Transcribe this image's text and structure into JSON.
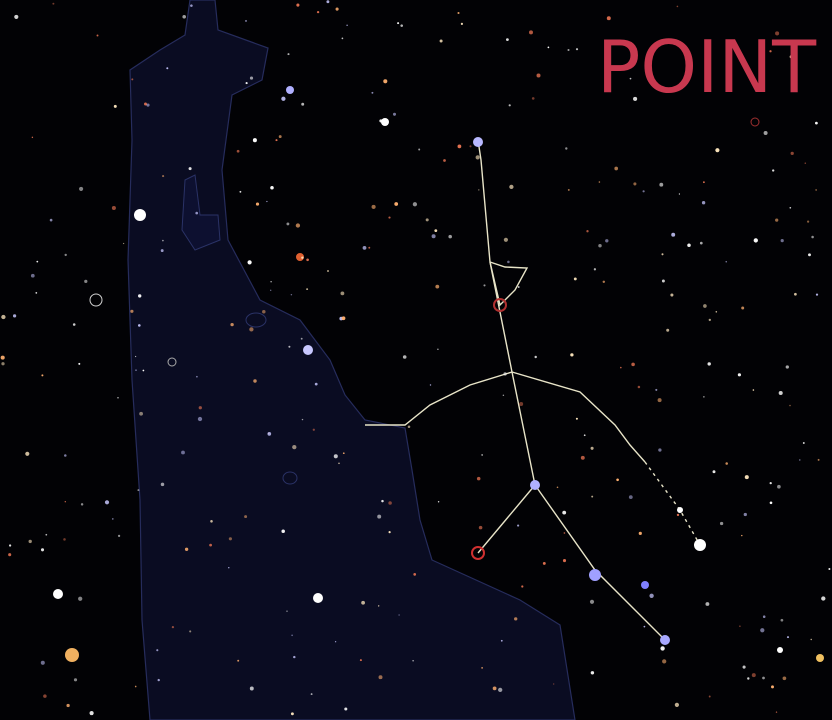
{
  "title": "POINT"
}
